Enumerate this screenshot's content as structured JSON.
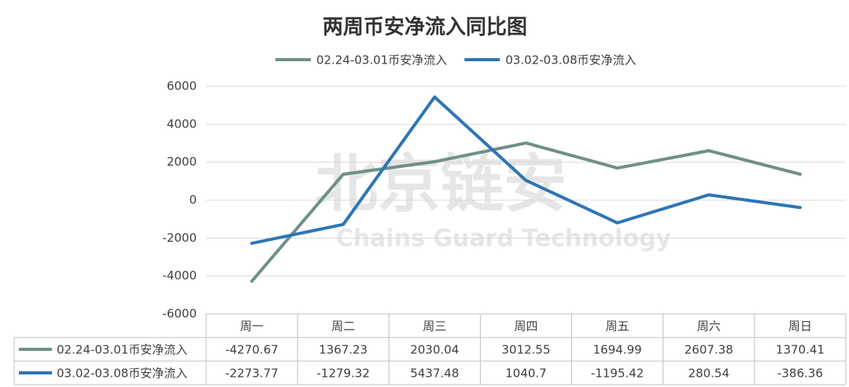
{
  "chart_data": {
    "type": "line",
    "title": "两周币安净流入同比图",
    "annotations": [
      "北京链安",
      "Chains Guard Technology"
    ],
    "categories": [
      "周一",
      "周二",
      "周三",
      "周四",
      "周五",
      "周六",
      "周日"
    ],
    "series": [
      {
        "name": "02.24-03.01币安净流入",
        "color": "#6e9088",
        "values": [
          -4270.67,
          1367.23,
          2030.04,
          3012.55,
          1694.99,
          2607.38,
          1370.41
        ]
      },
      {
        "name": "03.02-03.08币安净流入",
        "color": "#2e75b6",
        "values": [
          -2273.77,
          -1279.32,
          5437.48,
          1040.7,
          -1195.42,
          280.54,
          -386.36
        ]
      }
    ],
    "ylim": [
      -6000,
      6000
    ],
    "yticks": [
      -6000,
      -4000,
      -2000,
      0,
      2000,
      4000,
      6000
    ],
    "grid": true,
    "legend": "top",
    "data_table": true
  }
}
